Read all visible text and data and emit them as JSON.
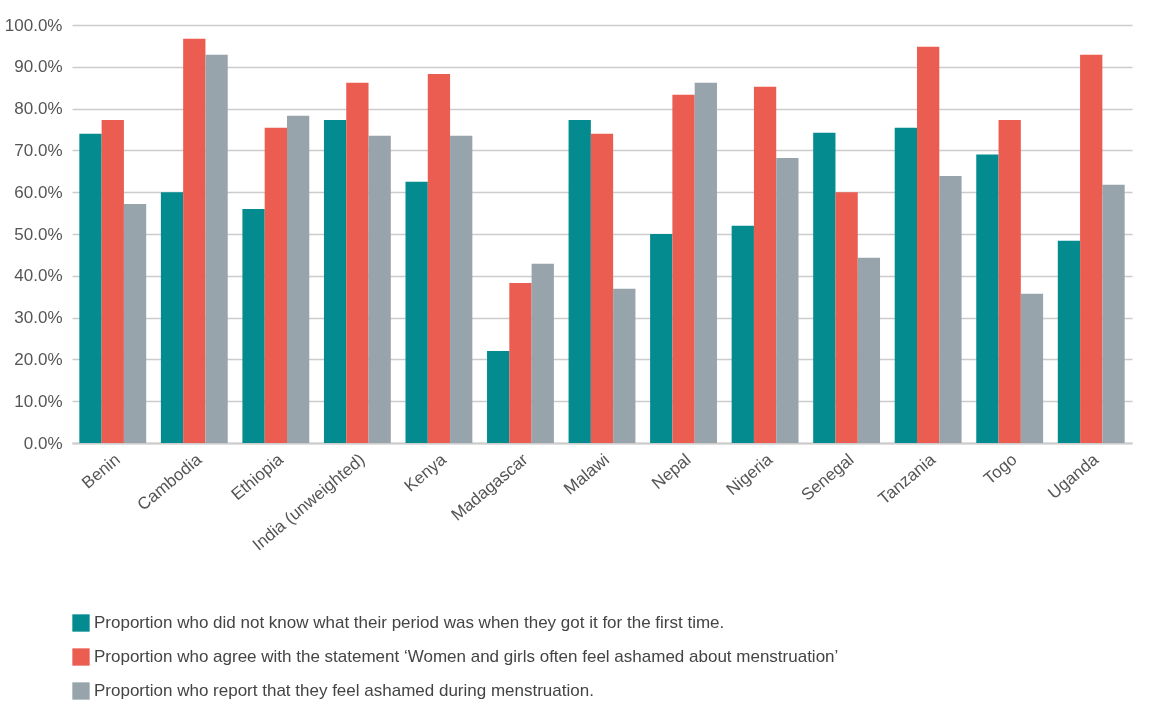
{
  "chart_data": {
    "type": "bar",
    "categories": [
      "Benin",
      "Cambodia",
      "Ethiopia",
      "India (unweighted)",
      "Kenya",
      "Madagascar",
      "Malawi",
      "Nepal",
      "Nigeria",
      "Senegal",
      "Tanzania",
      "Togo",
      "Uganda"
    ],
    "series": [
      {
        "name": "Proportion who did not know what their period was when they got it for the first time.",
        "color": "#038b8f",
        "values": [
          74.0,
          60.0,
          56.0,
          77.3,
          62.5,
          22.0,
          77.3,
          50.0,
          52.0,
          74.2,
          75.4,
          69.0,
          48.4
        ]
      },
      {
        "name": "Proportion who agree with the statement ‘Women and girls often feel ashamed about menstruation’",
        "color": "#eb5c51",
        "values": [
          77.3,
          96.7,
          75.4,
          86.2,
          88.3,
          38.3,
          74.0,
          83.3,
          85.2,
          60.0,
          94.8,
          77.3,
          92.9
        ]
      },
      {
        "name": "Proportion who report that they feel ashamed during menstruation.",
        "color": "#97a4ab",
        "values": [
          57.2,
          92.9,
          78.3,
          73.5,
          73.5,
          42.9,
          36.9,
          86.2,
          68.2,
          44.3,
          63.9,
          35.7,
          61.8
        ]
      }
    ],
    "ylim": [
      0,
      100
    ],
    "yticks": [
      {
        "value": 0,
        "label": "0.0%"
      },
      {
        "value": 10,
        "label": "10.0%"
      },
      {
        "value": 20,
        "label": "20.0%"
      },
      {
        "value": 30,
        "label": "30.0%"
      },
      {
        "value": 40,
        "label": "40.0%"
      },
      {
        "value": 50,
        "label": "50.0%"
      },
      {
        "value": 60,
        "label": "60.0%"
      },
      {
        "value": 70,
        "label": "70.0%"
      },
      {
        "value": 80,
        "label": "80.0%"
      },
      {
        "value": 90,
        "label": "90.0%"
      },
      {
        "value": 100,
        "label": "100.0%"
      }
    ],
    "grid": "y",
    "legend": "bottom"
  }
}
